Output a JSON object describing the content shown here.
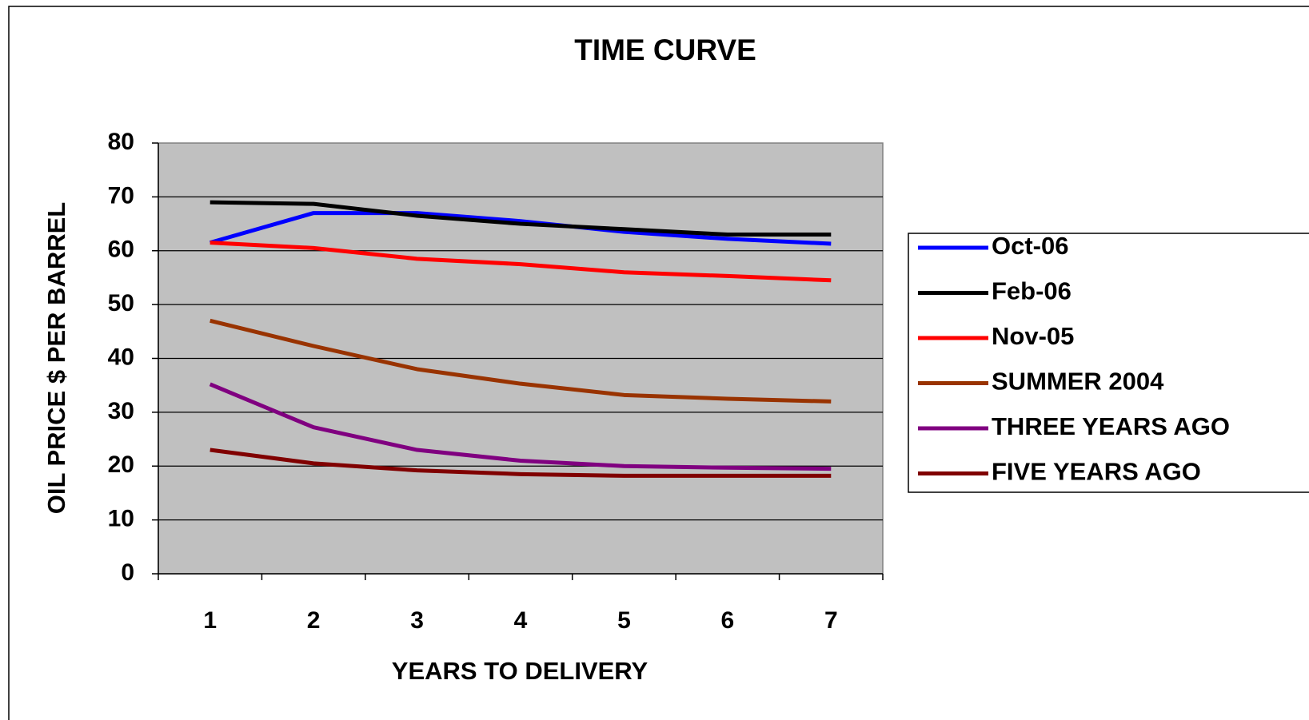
{
  "chart_data": {
    "type": "line",
    "title": "TIME CURVE",
    "x_label": "YEARS TO DELIVERY",
    "y_label": "OIL PRICE $ PER BARREL",
    "categories": [
      "1",
      "2",
      "3",
      "4",
      "5",
      "6",
      "7"
    ],
    "series": [
      {
        "name": "Oct-06",
        "color": "#0000ff",
        "values": [
          61.5,
          67,
          67,
          65.5,
          63.5,
          62.2,
          61.3
        ]
      },
      {
        "name": "Feb-06",
        "color": "#000000",
        "values": [
          69,
          68.7,
          66.5,
          65,
          64,
          63,
          63
        ]
      },
      {
        "name": "Nov-05",
        "color": "#ff0000",
        "values": [
          61.5,
          60.5,
          58.5,
          57.5,
          56,
          55.3,
          54.5
        ]
      },
      {
        "name": "SUMMER 2004",
        "color": "#993300",
        "values": [
          47,
          42.3,
          38,
          35.3,
          33.2,
          32.5,
          32
        ]
      },
      {
        "name": "THREE YEARS AGO",
        "color": "#800080",
        "values": [
          35.2,
          27.2,
          23,
          21,
          20,
          19.7,
          19.5
        ]
      },
      {
        "name": "FIVE YEARS AGO",
        "color": "#800000",
        "values": [
          23,
          20.5,
          19.2,
          18.5,
          18.2,
          18.2,
          18.2
        ]
      }
    ],
    "ylim": [
      0,
      80
    ],
    "yticks": [
      0,
      10,
      20,
      30,
      40,
      50,
      60,
      70,
      80
    ],
    "grid": true,
    "legend": "right"
  }
}
